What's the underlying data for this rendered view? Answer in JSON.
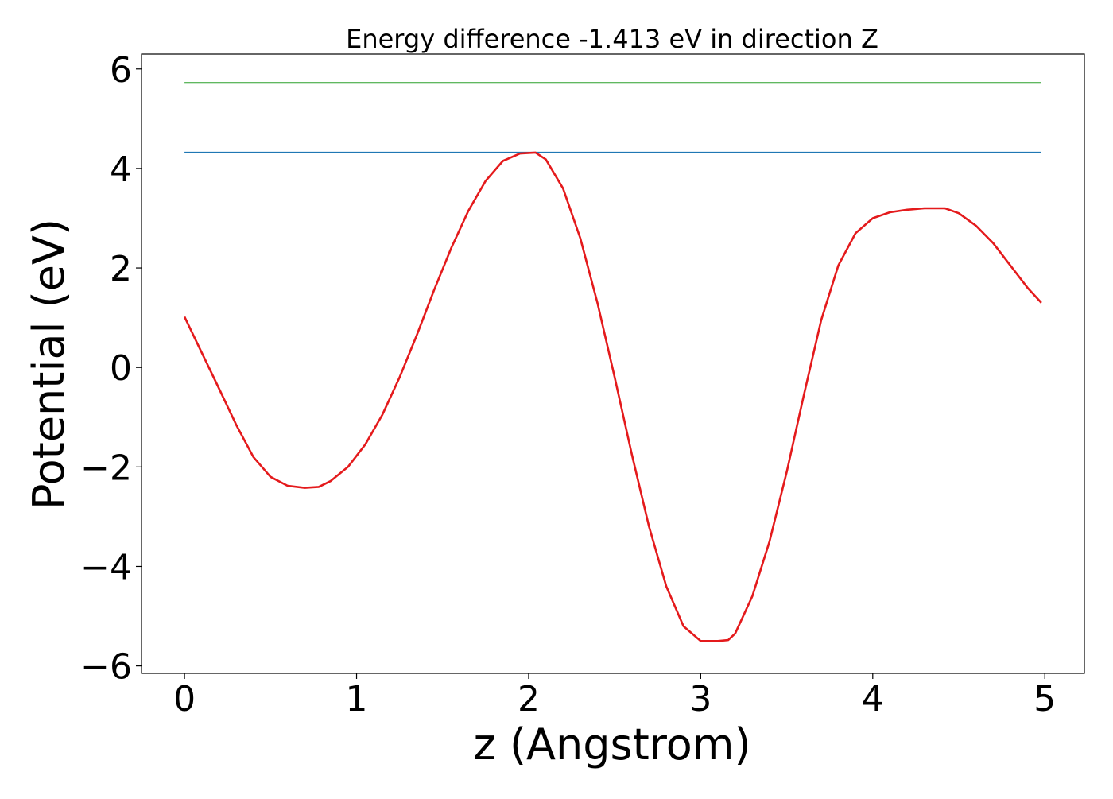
{
  "chart_data": {
    "type": "line",
    "title": "Energy difference -1.413 eV in direction Z",
    "xlabel": "z (Angstrom)",
    "ylabel": "Potential (eV)",
    "xlim": [
      -0.25,
      5.23
    ],
    "ylim": [
      -6.15,
      6.3
    ],
    "xticks": [
      0,
      1,
      2,
      3,
      4,
      5
    ],
    "yticks": [
      -6,
      -4,
      -2,
      0,
      2,
      4,
      6
    ],
    "xtick_labels": [
      "0",
      "1",
      "2",
      "3",
      "4",
      "5"
    ],
    "ytick_labels": [
      "−6",
      "−4",
      "−2",
      "0",
      "2",
      "4",
      "6"
    ],
    "grid": false,
    "legend": "none",
    "series": [
      {
        "color": "#2ca02c",
        "x": [
          0,
          4.98
        ],
        "y": [
          5.72,
          5.72
        ]
      },
      {
        "color": "#1f77b4",
        "x": [
          0,
          4.98
        ],
        "y": [
          4.32,
          4.32
        ]
      },
      {
        "color": "#e41a1c",
        "x": [
          0,
          0.1,
          0.2,
          0.3,
          0.4,
          0.5,
          0.6,
          0.7,
          0.78,
          0.85,
          0.95,
          1.05,
          1.15,
          1.25,
          1.35,
          1.45,
          1.55,
          1.65,
          1.75,
          1.85,
          1.95,
          2.04,
          2.1,
          2.2,
          2.3,
          2.4,
          2.5,
          2.6,
          2.7,
          2.8,
          2.9,
          3.0,
          3.1,
          3.16,
          3.2,
          3.3,
          3.4,
          3.5,
          3.6,
          3.7,
          3.8,
          3.9,
          4.0,
          4.1,
          4.2,
          4.3,
          4.42,
          4.5,
          4.6,
          4.7,
          4.8,
          4.9,
          4.98
        ],
        "y": [
          1.02,
          0.3,
          -0.42,
          -1.15,
          -1.8,
          -2.2,
          -2.38,
          -2.42,
          -2.4,
          -2.28,
          -2.0,
          -1.55,
          -0.95,
          -0.2,
          0.65,
          1.55,
          2.4,
          3.15,
          3.75,
          4.15,
          4.3,
          4.32,
          4.18,
          3.6,
          2.6,
          1.3,
          -0.2,
          -1.75,
          -3.2,
          -4.4,
          -5.2,
          -5.5,
          -5.5,
          -5.48,
          -5.35,
          -4.6,
          -3.5,
          -2.1,
          -0.55,
          0.95,
          2.05,
          2.7,
          3.0,
          3.12,
          3.17,
          3.2,
          3.2,
          3.1,
          2.85,
          2.5,
          2.05,
          1.6,
          1.3
        ]
      }
    ]
  }
}
